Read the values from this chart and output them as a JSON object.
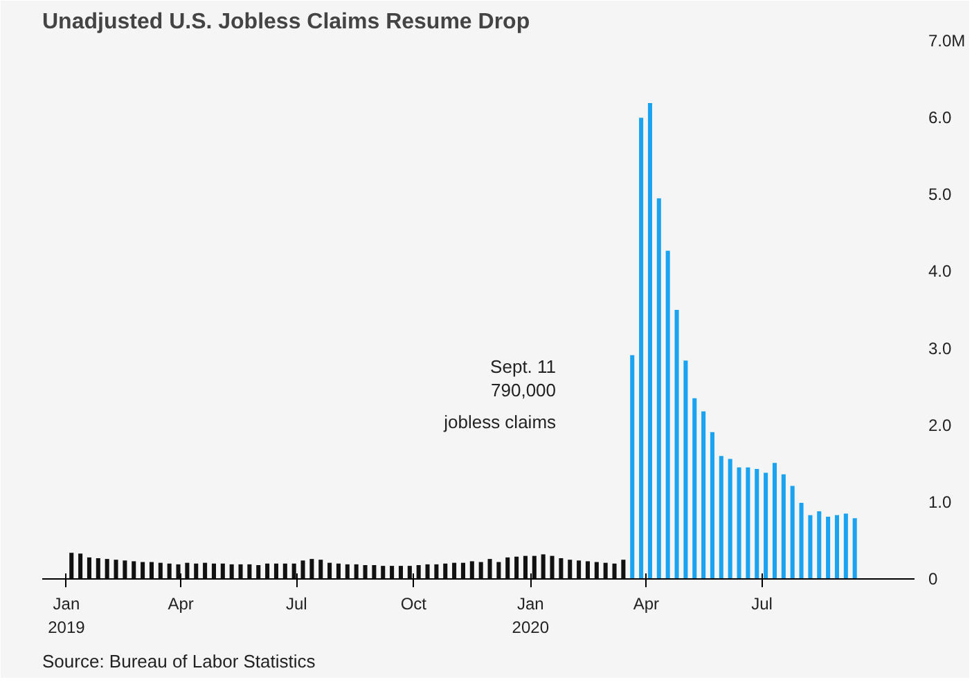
{
  "chart_data": {
    "type": "bar",
    "title": "Unadjusted U.S. Jobless Claims Resume Drop",
    "series": [
      {
        "color": "#111111",
        "x": [
          "2019-01-05",
          "2019-01-12",
          "2019-01-19",
          "2019-01-26",
          "2019-02-02",
          "2019-02-09",
          "2019-02-16",
          "2019-02-23",
          "2019-03-02",
          "2019-03-09",
          "2019-03-16",
          "2019-03-23",
          "2019-03-30",
          "2019-04-06",
          "2019-04-13",
          "2019-04-20",
          "2019-04-27",
          "2019-05-04",
          "2019-05-11",
          "2019-05-18",
          "2019-05-25",
          "2019-06-01",
          "2019-06-08",
          "2019-06-15",
          "2019-06-22",
          "2019-06-29",
          "2019-07-06",
          "2019-07-13",
          "2019-07-20",
          "2019-07-27",
          "2019-08-03",
          "2019-08-10",
          "2019-08-17",
          "2019-08-24",
          "2019-08-31",
          "2019-09-07",
          "2019-09-14",
          "2019-09-21",
          "2019-09-28",
          "2019-10-05",
          "2019-10-12",
          "2019-10-19",
          "2019-10-26",
          "2019-11-02",
          "2019-11-09",
          "2019-11-16",
          "2019-11-23",
          "2019-11-30",
          "2019-12-07",
          "2019-12-14",
          "2019-12-21",
          "2019-12-28",
          "2020-01-04",
          "2020-01-11",
          "2020-01-18",
          "2020-01-25",
          "2020-02-01",
          "2020-02-08",
          "2020-02-15",
          "2020-02-22",
          "2020-02-29",
          "2020-03-07",
          "2020-03-14"
        ],
        "values": [
          0.34,
          0.33,
          0.28,
          0.27,
          0.26,
          0.25,
          0.24,
          0.23,
          0.22,
          0.22,
          0.21,
          0.2,
          0.19,
          0.21,
          0.2,
          0.21,
          0.2,
          0.2,
          0.19,
          0.19,
          0.19,
          0.18,
          0.2,
          0.2,
          0.2,
          0.2,
          0.24,
          0.26,
          0.25,
          0.21,
          0.2,
          0.19,
          0.19,
          0.18,
          0.18,
          0.17,
          0.17,
          0.17,
          0.17,
          0.18,
          0.19,
          0.19,
          0.2,
          0.21,
          0.21,
          0.23,
          0.22,
          0.26,
          0.22,
          0.28,
          0.29,
          0.3,
          0.3,
          0.32,
          0.3,
          0.27,
          0.25,
          0.24,
          0.23,
          0.22,
          0.21,
          0.2,
          0.25
        ]
      },
      {
        "color": "#1aa3f0",
        "x": [
          "2020-03-21",
          "2020-03-28",
          "2020-04-04",
          "2020-04-11",
          "2020-04-18",
          "2020-04-25",
          "2020-05-02",
          "2020-05-09",
          "2020-05-16",
          "2020-05-23",
          "2020-05-30",
          "2020-06-06",
          "2020-06-13",
          "2020-06-20",
          "2020-06-27",
          "2020-07-04",
          "2020-07-11",
          "2020-07-18",
          "2020-07-25",
          "2020-08-01",
          "2020-08-08",
          "2020-08-15",
          "2020-08-22",
          "2020-08-29",
          "2020-09-05",
          "2020-09-12"
        ],
        "values": [
          2.91,
          6.0,
          6.19,
          4.95,
          4.27,
          3.5,
          2.84,
          2.35,
          2.18,
          1.91,
          1.6,
          1.56,
          1.45,
          1.45,
          1.43,
          1.38,
          1.51,
          1.36,
          1.21,
          0.99,
          0.83,
          0.88,
          0.81,
          0.83,
          0.85,
          0.79
        ]
      }
    ],
    "xlim": [
      "2018-12-13",
      "2020-10-29"
    ],
    "xticks": [
      {
        "value": "2019-01-01",
        "label": "Jan\n2019"
      },
      {
        "value": "2019-04-01",
        "label": "Apr"
      },
      {
        "value": "2019-07-01",
        "label": "Jul"
      },
      {
        "value": "2019-10-01",
        "label": "Oct"
      },
      {
        "value": "2020-01-01",
        "label": "Jan\n2020"
      },
      {
        "value": "2020-04-01",
        "label": "Apr"
      },
      {
        "value": "2020-07-01",
        "label": "Jul"
      }
    ],
    "ylim": [
      0,
      7.0
    ],
    "yticks": [
      {
        "value": 0,
        "label": "0"
      },
      {
        "value": 1,
        "label": "1.0"
      },
      {
        "value": 2,
        "label": "2.0"
      },
      {
        "value": 3,
        "label": "3.0"
      },
      {
        "value": 4,
        "label": "4.0"
      },
      {
        "value": 5,
        "label": "5.0"
      },
      {
        "value": 6,
        "label": "6.0"
      },
      {
        "value": 7,
        "label": "7.0M"
      }
    ],
    "grid": false,
    "annotations": [
      "Sept. 11\n790,000\njobless claims",
      "Source: Bureau of Labor Statistics"
    ]
  }
}
